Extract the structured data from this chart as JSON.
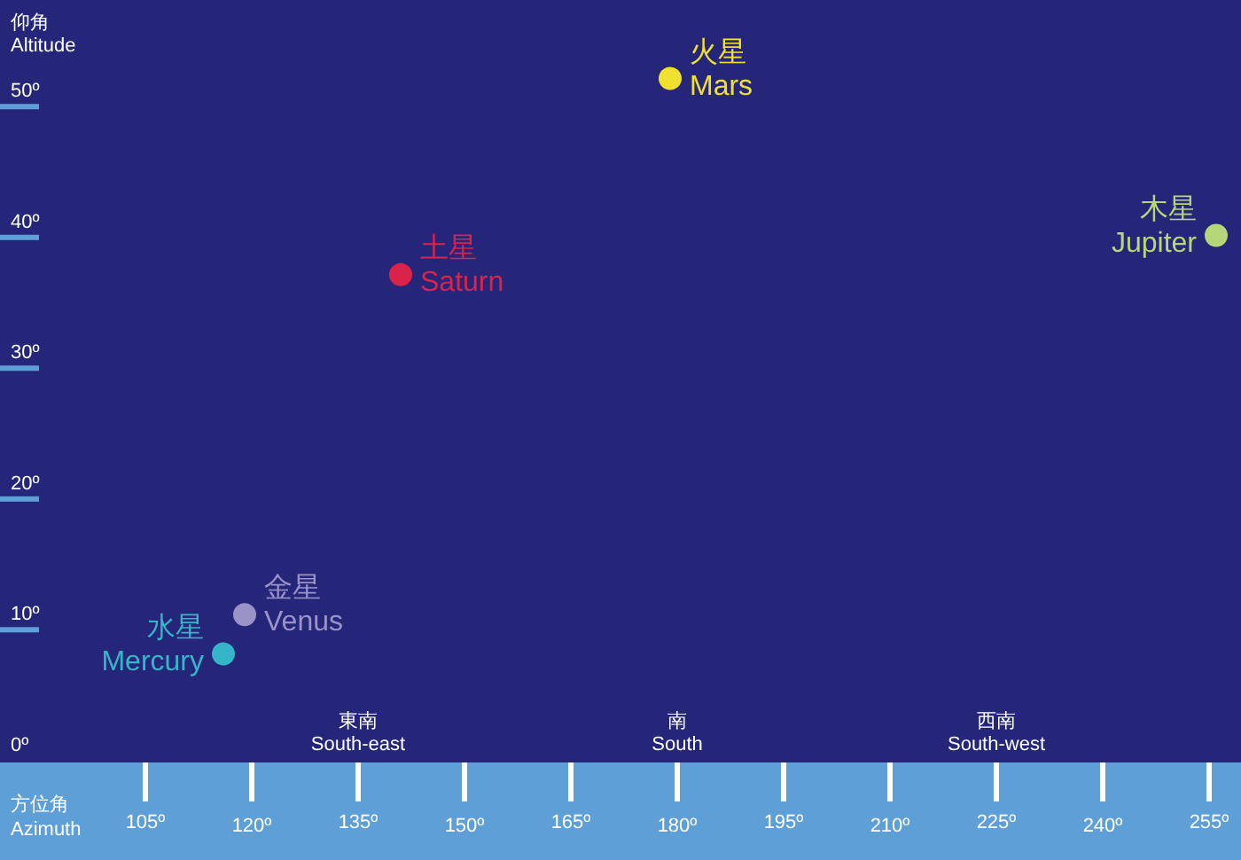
{
  "chart_data": {
    "type": "scatter",
    "xlabel": "方位角\nAzimuth",
    "ylabel": "仰角\nAltitude",
    "xlim": [
      84.5,
      259.5
    ],
    "ylim": [
      -1.3,
      57
    ],
    "xticks": [
      {
        "value": 105,
        "label": "105º"
      },
      {
        "value": 120,
        "label": "120º"
      },
      {
        "value": 135,
        "label": "135º"
      },
      {
        "value": 150,
        "label": "150º"
      },
      {
        "value": 165,
        "label": "165º"
      },
      {
        "value": 180,
        "label": "180º"
      },
      {
        "value": 195,
        "label": "195º"
      },
      {
        "value": 210,
        "label": "210º"
      },
      {
        "value": 225,
        "label": "225º"
      },
      {
        "value": 240,
        "label": "240º"
      },
      {
        "value": 255,
        "label": "255º"
      }
    ],
    "yticks": [
      {
        "value": 0,
        "label": "0º"
      },
      {
        "value": 10,
        "label": "10º"
      },
      {
        "value": 20,
        "label": "20º"
      },
      {
        "value": 30,
        "label": "30º"
      },
      {
        "value": 40,
        "label": "40º"
      },
      {
        "value": 50,
        "label": "50º"
      }
    ],
    "marker": "circle",
    "grid": false,
    "annotations": [
      "東南\nSouth-east",
      "南\nSouth",
      "西南\nSouth-west"
    ],
    "series": [
      {
        "name": "火星\nMars",
        "color": "#f0e130",
        "x": [
          179
        ],
        "values": [
          51
        ]
      },
      {
        "name": "土星\nSaturn",
        "color": "#d9234a",
        "x": [
          141
        ],
        "values": [
          36
        ]
      },
      {
        "name": "木星\nJupiter",
        "color": "#b5d77a",
        "x": [
          256
        ],
        "values": [
          39
        ]
      },
      {
        "name": "金星\nVenus",
        "color": "#9a93c8",
        "x": [
          119
        ],
        "values": [
          10
        ]
      },
      {
        "name": "水星\nMercury",
        "color": "#35b6c8",
        "x": [
          116
        ],
        "values": [
          7
        ]
      }
    ]
  }
}
